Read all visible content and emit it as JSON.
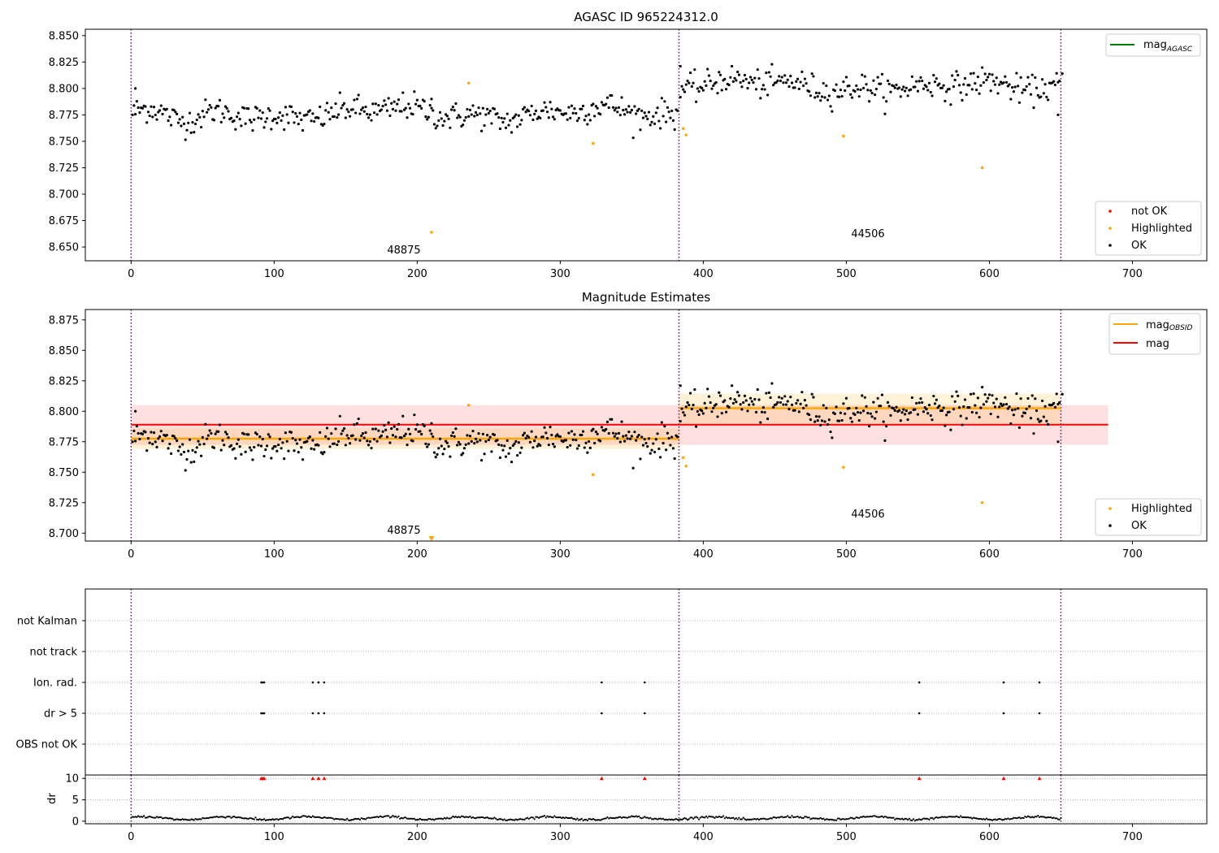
{
  "chart_data": [
    {
      "id": "top",
      "type": "scatter",
      "title": "AGASC ID 965224312.0",
      "xlim": [
        -32,
        752
      ],
      "ylim": [
        8.637,
        8.856
      ],
      "xticks": [
        0,
        100,
        200,
        300,
        400,
        500,
        600,
        700
      ],
      "yticks": [
        8.65,
        8.675,
        8.7,
        8.725,
        8.75,
        8.775,
        8.8,
        8.825,
        8.85
      ],
      "vlines": [
        0,
        383,
        650
      ],
      "segments": [
        {
          "x_start": 0,
          "x_end": 383,
          "mean": 8.7765,
          "amplitude": 0.008,
          "noise": 0.0065,
          "dip_center": 40,
          "dip_width": 18,
          "dip_depth": 0.01
        },
        {
          "x_start": 383,
          "x_end": 650,
          "mean": 8.803,
          "amplitude": 0.007,
          "noise": 0.0065,
          "dip_center": 560,
          "dip_width": 25,
          "dip_depth": 0.004
        }
      ],
      "ok_series": [
        {
          "x": 3,
          "y": 8.8
        },
        {
          "x": 210,
          "y": 8.79
        },
        {
          "x": 384,
          "y": 8.821
        },
        {
          "x": 648,
          "y": 8.775
        },
        {
          "x": 651,
          "y": 8.814
        }
      ],
      "highlighted": [
        {
          "x": 210,
          "y": 8.664
        },
        {
          "x": 236,
          "y": 8.805
        },
        {
          "x": 323,
          "y": 8.748
        },
        {
          "x": 386,
          "y": 8.762
        },
        {
          "x": 388,
          "y": 8.756
        },
        {
          "x": 498,
          "y": 8.755
        },
        {
          "x": 595,
          "y": 8.725
        }
      ],
      "obsid_labels": [
        {
          "text": "48875",
          "x": 190,
          "y": 8.644
        },
        {
          "text": "44506",
          "x": 517,
          "y": 8.659
        }
      ],
      "legend_lines": [
        {
          "label": "mag",
          "sub": "AGASC",
          "color": "#008000"
        }
      ],
      "legend_markers": [
        {
          "label": "not OK",
          "color": "#ff0000"
        },
        {
          "label": "Highlighted",
          "color": "#ffa500"
        },
        {
          "label": "OK",
          "color": "#000000"
        }
      ]
    },
    {
      "id": "mid",
      "type": "scatter",
      "title": "Magnitude Estimates",
      "xlim": [
        -32,
        752
      ],
      "ylim": [
        8.6935,
        8.8835
      ],
      "xticks": [
        0,
        100,
        200,
        300,
        400,
        500,
        600,
        700
      ],
      "yticks": [
        8.7,
        8.725,
        8.75,
        8.775,
        8.8,
        8.825,
        8.85,
        8.875
      ],
      "vlines": [
        0,
        383,
        650
      ],
      "global_mag": {
        "value": 8.789,
        "low": 8.7725,
        "high": 8.805,
        "x_start": 0,
        "x_end": 683,
        "color": "#ff0000"
      },
      "obsid_mag": [
        {
          "x_start": 0,
          "x_end": 383,
          "value": 8.7775,
          "low": 8.769,
          "high": 8.786
        },
        {
          "x_start": 383,
          "x_end": 650,
          "value": 8.8025,
          "low": 8.79,
          "high": 8.8145
        }
      ],
      "highlighted": [
        {
          "x": 236,
          "y": 8.805
        },
        {
          "x": 323,
          "y": 8.748
        },
        {
          "x": 386,
          "y": 8.762
        },
        {
          "x": 388,
          "y": 8.755
        },
        {
          "x": 498,
          "y": 8.754
        },
        {
          "x": 595,
          "y": 8.725
        }
      ],
      "offscale_marker": {
        "x": 210,
        "y": 8.6955
      },
      "obsid_labels": [
        {
          "text": "48875",
          "x": 190,
          "y": 8.7
        },
        {
          "text": "44506",
          "x": 517,
          "y": 8.715
        }
      ],
      "legend_lines": [
        {
          "label": "mag",
          "sub": "OBSID",
          "color": "#ffa500"
        },
        {
          "label": "mag",
          "sub": "",
          "color": "#ff0000"
        }
      ],
      "legend_markers": [
        {
          "label": "Highlighted",
          "color": "#ffa500"
        },
        {
          "label": "OK",
          "color": "#000000"
        }
      ]
    },
    {
      "id": "flags",
      "type": "scatter",
      "categories": [
        "not Kalman",
        "not track",
        "Ion. rad.",
        "dr > 5",
        "OBS not OK"
      ],
      "xlim": [
        -32,
        752
      ],
      "vlines": [
        0,
        383,
        650
      ],
      "ion_rad_x": [
        91,
        92,
        93,
        127,
        131,
        135,
        329,
        359,
        551,
        610,
        635
      ],
      "dr5_x": [
        91,
        92,
        93,
        127,
        131,
        135,
        329,
        359,
        551,
        610,
        635
      ]
    },
    {
      "id": "dr",
      "type": "scatter",
      "ylabel": "dr",
      "xlim": [
        -32,
        752
      ],
      "ylim": [
        -0.6,
        10.8
      ],
      "xticks": [
        0,
        100,
        200,
        300,
        400,
        500,
        600,
        700
      ],
      "yticks": [
        0,
        5,
        10
      ],
      "vlines": [
        0,
        383,
        650
      ],
      "series_shape": {
        "x_start": 0,
        "x_end": 650,
        "base": 0.7,
        "amplitude": 0.35
      },
      "clipped_markers_x": [
        91,
        92,
        93,
        127,
        131,
        135,
        329,
        359,
        551,
        610,
        635
      ],
      "clip_value": 10
    }
  ]
}
